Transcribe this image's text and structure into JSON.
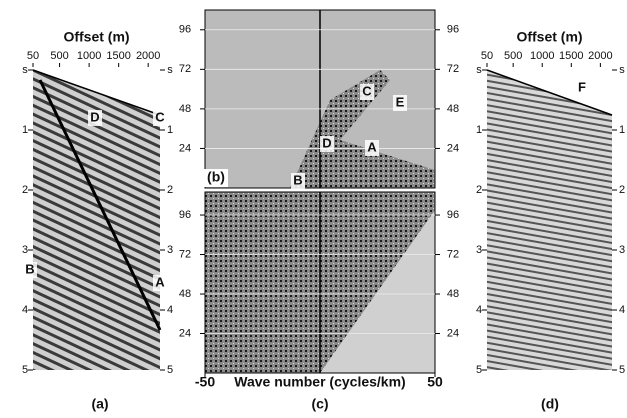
{
  "chart_data": [
    {
      "type": "seismic",
      "xlabel": "Offset (m)",
      "panel_label": "(a)",
      "xlim": [
        50,
        2200
      ],
      "xticks": [
        50,
        500,
        1000,
        1500,
        2000
      ],
      "ylim": [
        0,
        5
      ],
      "y_inverted": true,
      "yticks": [
        {
          "value": 0,
          "label": "s"
        },
        1,
        2,
        3,
        4,
        5
      ],
      "annotations": [
        "D",
        "C",
        "B",
        "A"
      ]
    },
    {
      "type": "fk",
      "panel_label": "(b)",
      "xlim": [
        -50,
        50
      ],
      "ylim": [
        0,
        108
      ],
      "yticks": [
        24,
        48,
        72,
        96
      ],
      "grid": true,
      "annotations": [
        "C",
        "E",
        "D",
        "A",
        "B"
      ]
    },
    {
      "type": "fk",
      "panel_label": "(c)",
      "xlabel": "Wave number (cycles/km)",
      "xlim": [
        -50,
        50
      ],
      "xticks": [
        -50,
        50
      ],
      "ylim": [
        0,
        110
      ],
      "yticks": [
        24,
        48,
        72,
        96
      ],
      "grid": true
    },
    {
      "type": "seismic",
      "xlabel": "Offset (m)",
      "panel_label": "(d)",
      "xlim": [
        50,
        2200
      ],
      "xticks": [
        50,
        500,
        1000,
        1500,
        2000
      ],
      "ylim": [
        0,
        5
      ],
      "y_inverted": true,
      "yticks": [
        {
          "value": 0,
          "label": "s"
        },
        1,
        2,
        3,
        4,
        5
      ],
      "annotations": [
        "F"
      ]
    }
  ]
}
